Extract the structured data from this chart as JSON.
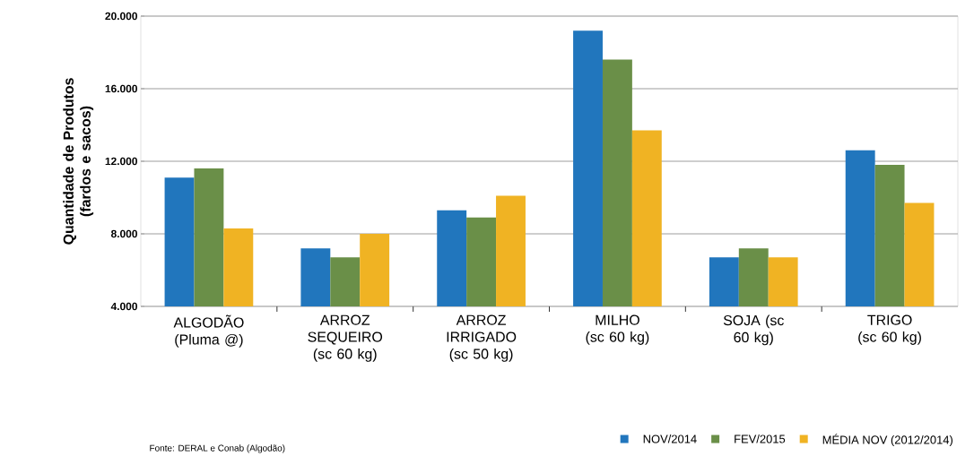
{
  "chart_data": {
    "type": "bar",
    "ylabel": "Quantidade de Produtos (fardos e sacos)",
    "categories": [
      "ALGODÃO (Pluma @)",
      "ARROZ SEQUEIRO (sc 60 kg)",
      "ARROZ IRRIGADO (sc 50 kg)",
      "MILHO (sc 60 kg)",
      "SOJA (sc 60 kg)",
      "TRIGO (sc 60 kg)"
    ],
    "series": [
      {
        "name": "NOV/2014",
        "color": "#2176bd",
        "values": [
          11100,
          7200,
          9300,
          19200,
          6700,
          12600
        ]
      },
      {
        "name": "FEV/2015",
        "color": "#6a8f48",
        "values": [
          11600,
          6700,
          8900,
          17600,
          7200,
          11800
        ]
      },
      {
        "name": "MÉDIA NOV (2012/2014)",
        "color": "#f0b323",
        "values": [
          8300,
          8000,
          10100,
          13700,
          6700,
          9700
        ]
      }
    ],
    "ylim": [
      4000,
      20000
    ],
    "yticks": [
      {
        "value": 4000,
        "label": "4.000"
      },
      {
        "value": 8000,
        "label": "8.000"
      },
      {
        "value": 12000,
        "label": "12.000"
      },
      {
        "value": 16000,
        "label": "16.000"
      },
      {
        "value": 20000,
        "label": "20.000"
      }
    ],
    "grid": "y",
    "legend": "bottom right",
    "annotations": [
      "Fonte: DERAL e Conab (Algodão)"
    ]
  }
}
